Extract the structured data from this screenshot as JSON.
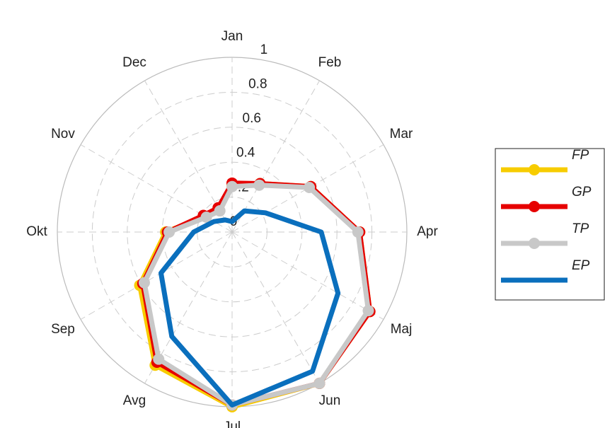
{
  "chart_data": {
    "type": "polar",
    "categories": [
      "Jan",
      "Feb",
      "Mar",
      "Apr",
      "Maj",
      "Jun",
      "Jul",
      "Avg",
      "Sep",
      "Okt",
      "Nov",
      "Dec"
    ],
    "rlim": [
      0,
      1
    ],
    "rticks": [
      0,
      0.2,
      0.4,
      0.6,
      0.8,
      1
    ],
    "grid": true,
    "legend": "right",
    "series": [
      {
        "name": "FP",
        "color": "#f7cc00",
        "marker": true,
        "values": [
          0.27,
          0.32,
          0.52,
          0.73,
          0.91,
          1.0,
          1.0,
          0.88,
          0.61,
          0.38,
          0.18,
          0.15
        ]
      },
      {
        "name": "GP",
        "color": "#e60000",
        "marker": true,
        "values": [
          0.28,
          0.32,
          0.52,
          0.73,
          0.91,
          1.0,
          0.99,
          0.86,
          0.59,
          0.37,
          0.19,
          0.16
        ]
      },
      {
        "name": "TP",
        "color": "#c8c8c8",
        "marker": true,
        "values": [
          0.26,
          0.31,
          0.51,
          0.72,
          0.9,
          1.0,
          0.99,
          0.84,
          0.58,
          0.36,
          0.17,
          0.14
        ]
      },
      {
        "name": "EP",
        "color": "#0a6fbd",
        "marker": false,
        "values": [
          0.06,
          0.14,
          0.22,
          0.51,
          0.7,
          0.92,
          0.99,
          0.69,
          0.47,
          0.22,
          0.12,
          0.08
        ]
      }
    ]
  }
}
